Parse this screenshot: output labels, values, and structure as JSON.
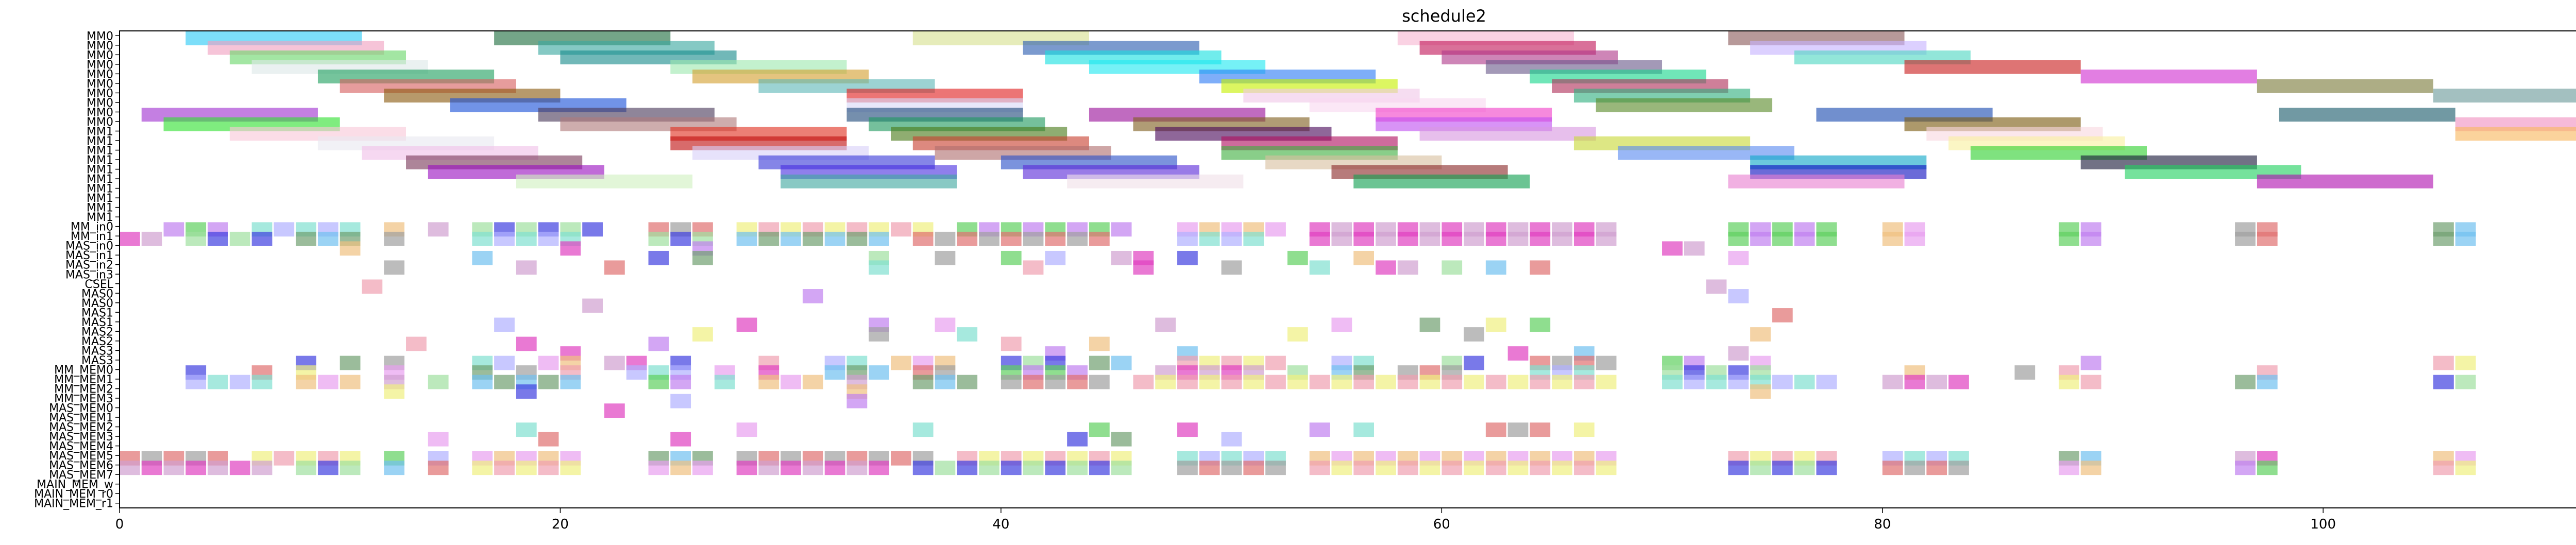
{
  "chart_data": {
    "type": "gantt",
    "title": "schedule2",
    "xlim": [
      0,
      114
    ],
    "x_ticks": [
      0,
      20,
      40,
      60,
      80,
      100
    ],
    "x_tick_labels": [
      "0",
      "20",
      "40",
      "60",
      "80",
      "100"
    ],
    "rows": [
      "MM0",
      "MM0",
      "MM0",
      "MM0",
      "MM0",
      "MM0",
      "MM0",
      "MM0",
      "MM0",
      "MM0",
      "MM1",
      "MM1",
      "MM1",
      "MM1",
      "MM1",
      "MM1",
      "MM1",
      "MM1",
      "MM1",
      "MM1",
      "MM_in0",
      "MM_in1",
      "MAS_in0",
      "MAS_in1",
      "MAS_in2",
      "MAS_in3",
      "CSEL",
      "MAS0",
      "MAS0",
      "MAS1",
      "MAS1",
      "MAS2",
      "MAS2",
      "MAS3",
      "MAS3",
      "MM_MEM0",
      "MM_MEM1",
      "MM_MEM2",
      "MM_MEM3",
      "MAS_MEM0",
      "MAS_MEM1",
      "MAS_MEM2",
      "MAS_MEM3",
      "MAS_MEM4",
      "MAS_MEM5",
      "MAS_MEM6",
      "MAS_MEM7",
      "MAIN_MEM_w",
      "MAIN_MEM_r0",
      "MAIN_MEM_r1"
    ],
    "tasks": [
      {
        "row": 0,
        "start": 3,
        "end": 11,
        "color": "#2cc9f5"
      },
      {
        "row": 0,
        "start": 17,
        "end": 25,
        "color": "#1f6e3f"
      },
      {
        "row": 0,
        "start": 36,
        "end": 44,
        "color": "#d7e08f"
      },
      {
        "row": 0,
        "start": 58,
        "end": 66,
        "color": "#f7b6d2"
      },
      {
        "row": 0,
        "start": 73,
        "end": 81,
        "color": "#8a5a5a"
      },
      {
        "row": 1,
        "start": 4,
        "end": 12,
        "color": "#f0a0c0"
      },
      {
        "row": 1,
        "start": 19,
        "end": 27,
        "color": "#3aa8a0"
      },
      {
        "row": 1,
        "start": 41,
        "end": 49,
        "color": "#2a5cb0"
      },
      {
        "row": 1,
        "start": 59,
        "end": 67,
        "color": "#c2185b"
      },
      {
        "row": 1,
        "start": 74,
        "end": 82,
        "color": "#c7b3ff"
      },
      {
        "row": 2,
        "start": 5,
        "end": 13,
        "color": "#6ad66a"
      },
      {
        "row": 2,
        "start": 20,
        "end": 28,
        "color": "#1a8c8c"
      },
      {
        "row": 2,
        "start": 42,
        "end": 50,
        "color": "#19e0e0"
      },
      {
        "row": 2,
        "start": 60,
        "end": 68,
        "color": "#b03a8a"
      },
      {
        "row": 2,
        "start": 76,
        "end": 84,
        "color": "#4fd6c2"
      },
      {
        "row": 3,
        "start": 6,
        "end": 14,
        "color": "#dde8e8"
      },
      {
        "row": 3,
        "start": 25,
        "end": 33,
        "color": "#9ee8b0"
      },
      {
        "row": 3,
        "start": 44,
        "end": 52,
        "color": "#21e8f0"
      },
      {
        "row": 3,
        "start": 62,
        "end": 70,
        "color": "#6a5a8a"
      },
      {
        "row": 3,
        "start": 81,
        "end": 89,
        "color": "#c91f1f"
      },
      {
        "row": 4,
        "start": 9,
        "end": 17,
        "color": "#20a060"
      },
      {
        "row": 4,
        "start": 26,
        "end": 34,
        "color": "#d4a030"
      },
      {
        "row": 4,
        "start": 49,
        "end": 57,
        "color": "#2f7df5"
      },
      {
        "row": 4,
        "start": 64,
        "end": 72,
        "color": "#19d68c"
      },
      {
        "row": 4,
        "start": 89,
        "end": 97,
        "color": "#d12fd1"
      },
      {
        "row": 5,
        "start": 10,
        "end": 18,
        "color": "#d66060"
      },
      {
        "row": 5,
        "start": 29,
        "end": 37,
        "color": "#5fb8b8"
      },
      {
        "row": 5,
        "start": 50,
        "end": 58,
        "color": "#c6f000"
      },
      {
        "row": 5,
        "start": 65,
        "end": 73,
        "color": "#b0305a"
      },
      {
        "row": 5,
        "start": 97,
        "end": 105,
        "color": "#7a7a3a"
      },
      {
        "row": 6,
        "start": 12,
        "end": 20,
        "color": "#8a5a10"
      },
      {
        "row": 6,
        "start": 33,
        "end": 41,
        "color": "#e02020"
      },
      {
        "row": 6,
        "start": 51,
        "end": 59,
        "color": "#f0c8e8"
      },
      {
        "row": 6,
        "start": 66,
        "end": 74,
        "color": "#30b080"
      },
      {
        "row": 6,
        "start": 105,
        "end": 113,
        "color": "#6a9a9a"
      },
      {
        "row": 7,
        "start": 15,
        "end": 23,
        "color": "#1a50d8"
      },
      {
        "row": 7,
        "start": 33,
        "end": 41,
        "color": "#d8d8f8"
      },
      {
        "row": 7,
        "start": 54,
        "end": 62,
        "color": "#f8d8f0"
      },
      {
        "row": 7,
        "start": 67,
        "end": 75,
        "color": "#5a8a2a"
      },
      {
        "row": 8,
        "start": 1,
        "end": 9,
        "color": "#a030d0"
      },
      {
        "row": 8,
        "start": 19,
        "end": 27,
        "color": "#4a3a5a"
      },
      {
        "row": 8,
        "start": 33,
        "end": 41,
        "color": "#204a7a"
      },
      {
        "row": 8,
        "start": 44,
        "end": 52,
        "color": "#9a109a"
      },
      {
        "row": 8,
        "start": 57,
        "end": 65,
        "color": "#f040c8"
      },
      {
        "row": 8,
        "start": 77,
        "end": 85,
        "color": "#1a4ab0"
      },
      {
        "row": 8,
        "start": 98,
        "end": 106,
        "color": "#1a5a6a"
      },
      {
        "row": 9,
        "start": 2,
        "end": 10,
        "color": "#30e030"
      },
      {
        "row": 9,
        "start": 20,
        "end": 28,
        "color": "#b07a7a"
      },
      {
        "row": 9,
        "start": 34,
        "end": 42,
        "color": "#209a60"
      },
      {
        "row": 9,
        "start": 46,
        "end": 54,
        "color": "#806020"
      },
      {
        "row": 9,
        "start": 57,
        "end": 65,
        "color": "#c050f0"
      },
      {
        "row": 9,
        "start": 81,
        "end": 89,
        "color": "#7a5a10"
      },
      {
        "row": 9,
        "start": 106,
        "end": 114,
        "color": "#f090c0"
      },
      {
        "row": 10,
        "start": 5,
        "end": 13,
        "color": "#f8c8d8"
      },
      {
        "row": 10,
        "start": 25,
        "end": 33,
        "color": "#e03020"
      },
      {
        "row": 10,
        "start": 35,
        "end": 43,
        "color": "#4a7a1a"
      },
      {
        "row": 10,
        "start": 47,
        "end": 55,
        "color": "#4a0a5a"
      },
      {
        "row": 10,
        "start": 59,
        "end": 67,
        "color": "#d898e0"
      },
      {
        "row": 10,
        "start": 82,
        "end": 90,
        "color": "#f8d8e0"
      },
      {
        "row": 10,
        "start": 106,
        "end": 114,
        "color": "#f8b860"
      },
      {
        "row": 11,
        "start": 9,
        "end": 17,
        "color": "#e8e8f0"
      },
      {
        "row": 11,
        "start": 25,
        "end": 33,
        "color": "#c01010"
      },
      {
        "row": 11,
        "start": 36,
        "end": 44,
        "color": "#c84030"
      },
      {
        "row": 11,
        "start": 50,
        "end": 58,
        "color": "#b01060"
      },
      {
        "row": 11,
        "start": 66,
        "end": 74,
        "color": "#c8d838"
      },
      {
        "row": 11,
        "start": 83,
        "end": 91,
        "color": "#f8f0a0"
      },
      {
        "row": 12,
        "start": 11,
        "end": 19,
        "color": "#f0c0e8"
      },
      {
        "row": 12,
        "start": 26,
        "end": 34,
        "color": "#d8d0f8"
      },
      {
        "row": 12,
        "start": 37,
        "end": 45,
        "color": "#b07070"
      },
      {
        "row": 12,
        "start": 50,
        "end": 58,
        "color": "#40b040"
      },
      {
        "row": 12,
        "start": 68,
        "end": 76,
        "color": "#5a8af0"
      },
      {
        "row": 12,
        "start": 84,
        "end": 92,
        "color": "#30d030"
      },
      {
        "row": 13,
        "start": 13,
        "end": 21,
        "color": "#7a3a5a"
      },
      {
        "row": 13,
        "start": 29,
        "end": 37,
        "color": "#3a3ad8"
      },
      {
        "row": 13,
        "start": 40,
        "end": 48,
        "color": "#2a50c8"
      },
      {
        "row": 13,
        "start": 52,
        "end": 60,
        "color": "#d8c0a0"
      },
      {
        "row": 13,
        "start": 74,
        "end": 82,
        "color": "#10a8c8"
      },
      {
        "row": 13,
        "start": 89,
        "end": 97,
        "color": "#1a1a3a"
      },
      {
        "row": 14,
        "start": 14,
        "end": 22,
        "color": "#9a10c0"
      },
      {
        "row": 14,
        "start": 30,
        "end": 38,
        "color": "#4a30e0"
      },
      {
        "row": 14,
        "start": 41,
        "end": 49,
        "color": "#5a2ad8"
      },
      {
        "row": 14,
        "start": 55,
        "end": 63,
        "color": "#8a2a2a"
      },
      {
        "row": 14,
        "start": 74,
        "end": 82,
        "color": "#1010c0"
      },
      {
        "row": 14,
        "start": 91,
        "end": 99,
        "color": "#20d060"
      },
      {
        "row": 15,
        "start": 18,
        "end": 26,
        "color": "#d0f0c0"
      },
      {
        "row": 15,
        "start": 30,
        "end": 38,
        "color": "#40a8a0"
      },
      {
        "row": 15,
        "start": 43,
        "end": 51,
        "color": "#f0e0e8"
      },
      {
        "row": 15,
        "start": 56,
        "end": 64,
        "color": "#10a050"
      },
      {
        "row": 15,
        "start": 73,
        "end": 81,
        "color": "#e880d0"
      },
      {
        "row": 15,
        "start": 97,
        "end": 105,
        "color": "#b010b0"
      }
    ],
    "markers": [
      {
        "row": 20,
        "xs": [
          2,
          3,
          4,
          6,
          7,
          8,
          9,
          10,
          12,
          14,
          16,
          17,
          18,
          19,
          20,
          21,
          24,
          25,
          26,
          28,
          29,
          30,
          31,
          32,
          33,
          34,
          35,
          36,
          38,
          39,
          40,
          41,
          42,
          43,
          44,
          45,
          48,
          49,
          50,
          51,
          52,
          54,
          55,
          56,
          57,
          58,
          59,
          60,
          61,
          62,
          63,
          64,
          65,
          66,
          67,
          73,
          74,
          75,
          76,
          77,
          80,
          81,
          88,
          89,
          96,
          97,
          105,
          106
        ]
      },
      {
        "row": 21,
        "xs": [
          0,
          1,
          3,
          4,
          5,
          6,
          8,
          9,
          10,
          12,
          16,
          17,
          18,
          19,
          20,
          24,
          25,
          26,
          28,
          29,
          30,
          31,
          32,
          33,
          34,
          36,
          37,
          38,
          39,
          40,
          41,
          42,
          43,
          44,
          48,
          49,
          50,
          51,
          54,
          55,
          56,
          57,
          58,
          59,
          60,
          61,
          62,
          63,
          64,
          65,
          66,
          67,
          73,
          74,
          75,
          76,
          77,
          80,
          81,
          88,
          89,
          96,
          97,
          105,
          106
        ]
      },
      {
        "row": 22,
        "xs": [
          10,
          20,
          26,
          70,
          71
        ]
      },
      {
        "row": 23,
        "xs": [
          16,
          24,
          26,
          34,
          37,
          40,
          42,
          45,
          46,
          48,
          53,
          56,
          73
        ]
      },
      {
        "row": 24,
        "xs": [
          12,
          18,
          22,
          34,
          41,
          46,
          50,
          54,
          57,
          58,
          60,
          62,
          64
        ]
      },
      {
        "row": 26,
        "xs": [
          11,
          72
        ]
      },
      {
        "row": 27,
        "xs": [
          31,
          73
        ]
      },
      {
        "row": 28,
        "xs": [
          21
        ]
      },
      {
        "row": 29,
        "xs": [
          75
        ]
      },
      {
        "row": 30,
        "xs": [
          17,
          28,
          34,
          37,
          47,
          55,
          59,
          62,
          64
        ]
      },
      {
        "row": 31,
        "xs": [
          26,
          34,
          38,
          53,
          61,
          74
        ]
      },
      {
        "row": 32,
        "xs": [
          13,
          18,
          24,
          40,
          44
        ]
      },
      {
        "row": 33,
        "xs": [
          20,
          42,
          48,
          63,
          66,
          73
        ]
      },
      {
        "row": 34,
        "xs": [
          8,
          10,
          12,
          16,
          17,
          19,
          20,
          22,
          23,
          25,
          29,
          32,
          33,
          35,
          36,
          37,
          40,
          41,
          42,
          44,
          45,
          48,
          49,
          50,
          51,
          52,
          55,
          56,
          60,
          61,
          64,
          65,
          66,
          67,
          70,
          71,
          74,
          89,
          105,
          106
        ]
      },
      {
        "row": 35,
        "xs": [
          3,
          6,
          8,
          12,
          16,
          18,
          20,
          23,
          24,
          25,
          27,
          29,
          32,
          33,
          34,
          36,
          37,
          40,
          41,
          42,
          43,
          47,
          48,
          49,
          50,
          51,
          53,
          55,
          56,
          58,
          59,
          60,
          64,
          65,
          66,
          70,
          71,
          72,
          73,
          74,
          81,
          86,
          88,
          97
        ]
      },
      {
        "row": 36,
        "xs": [
          3,
          4,
          5,
          6,
          8,
          9,
          10,
          12,
          14,
          16,
          17,
          18,
          19,
          20,
          24,
          25,
          27,
          29,
          30,
          31,
          33,
          36,
          37,
          38,
          40,
          41,
          42,
          43,
          44,
          46,
          47,
          48,
          49,
          50,
          51,
          52,
          53,
          54,
          55,
          56,
          57,
          58,
          59,
          60,
          61,
          62,
          63,
          64,
          65,
          66,
          67,
          70,
          71,
          72,
          73,
          74,
          75,
          76,
          77,
          80,
          81,
          82,
          83,
          88,
          89,
          96,
          97,
          105,
          106
        ]
      },
      {
        "row": 37,
        "xs": [
          12,
          18,
          33,
          74
        ]
      },
      {
        "row": 38,
        "xs": [
          25,
          33
        ]
      },
      {
        "row": 39,
        "xs": [
          22
        ]
      },
      {
        "row": 40,
        "xs": []
      },
      {
        "row": 41,
        "xs": [
          18,
          28,
          36,
          44,
          48,
          54,
          56,
          62,
          63,
          64,
          66
        ]
      },
      {
        "row": 42,
        "xs": [
          14,
          19,
          25,
          43,
          45,
          50
        ]
      },
      {
        "row": 44,
        "xs": [
          0,
          1,
          2,
          3,
          4,
          6,
          7,
          8,
          9,
          10,
          12,
          14,
          16,
          17,
          18,
          19,
          20,
          24,
          25,
          26,
          28,
          29,
          30,
          31,
          32,
          33,
          34,
          35,
          36,
          38,
          39,
          40,
          41,
          42,
          43,
          44,
          45,
          48,
          49,
          50,
          51,
          52,
          54,
          55,
          56,
          57,
          58,
          59,
          60,
          61,
          62,
          63,
          64,
          65,
          66,
          67,
          73,
          74,
          75,
          76,
          77,
          80,
          81,
          82,
          83,
          88,
          89,
          96,
          97,
          105,
          106
        ]
      },
      {
        "row": 45,
        "xs": [
          0,
          1,
          2,
          3,
          4,
          5,
          6,
          8,
          9,
          10,
          12,
          14,
          16,
          17,
          18,
          19,
          20,
          24,
          25,
          26,
          28,
          29,
          30,
          31,
          32,
          33,
          34,
          36,
          37,
          38,
          39,
          40,
          41,
          42,
          43,
          44,
          45,
          48,
          49,
          50,
          51,
          52,
          54,
          55,
          56,
          57,
          58,
          59,
          60,
          61,
          62,
          63,
          64,
          65,
          66,
          67,
          73,
          74,
          75,
          76,
          77,
          80,
          81,
          82,
          83,
          88,
          89,
          96,
          97,
          105,
          106
        ]
      }
    ]
  }
}
